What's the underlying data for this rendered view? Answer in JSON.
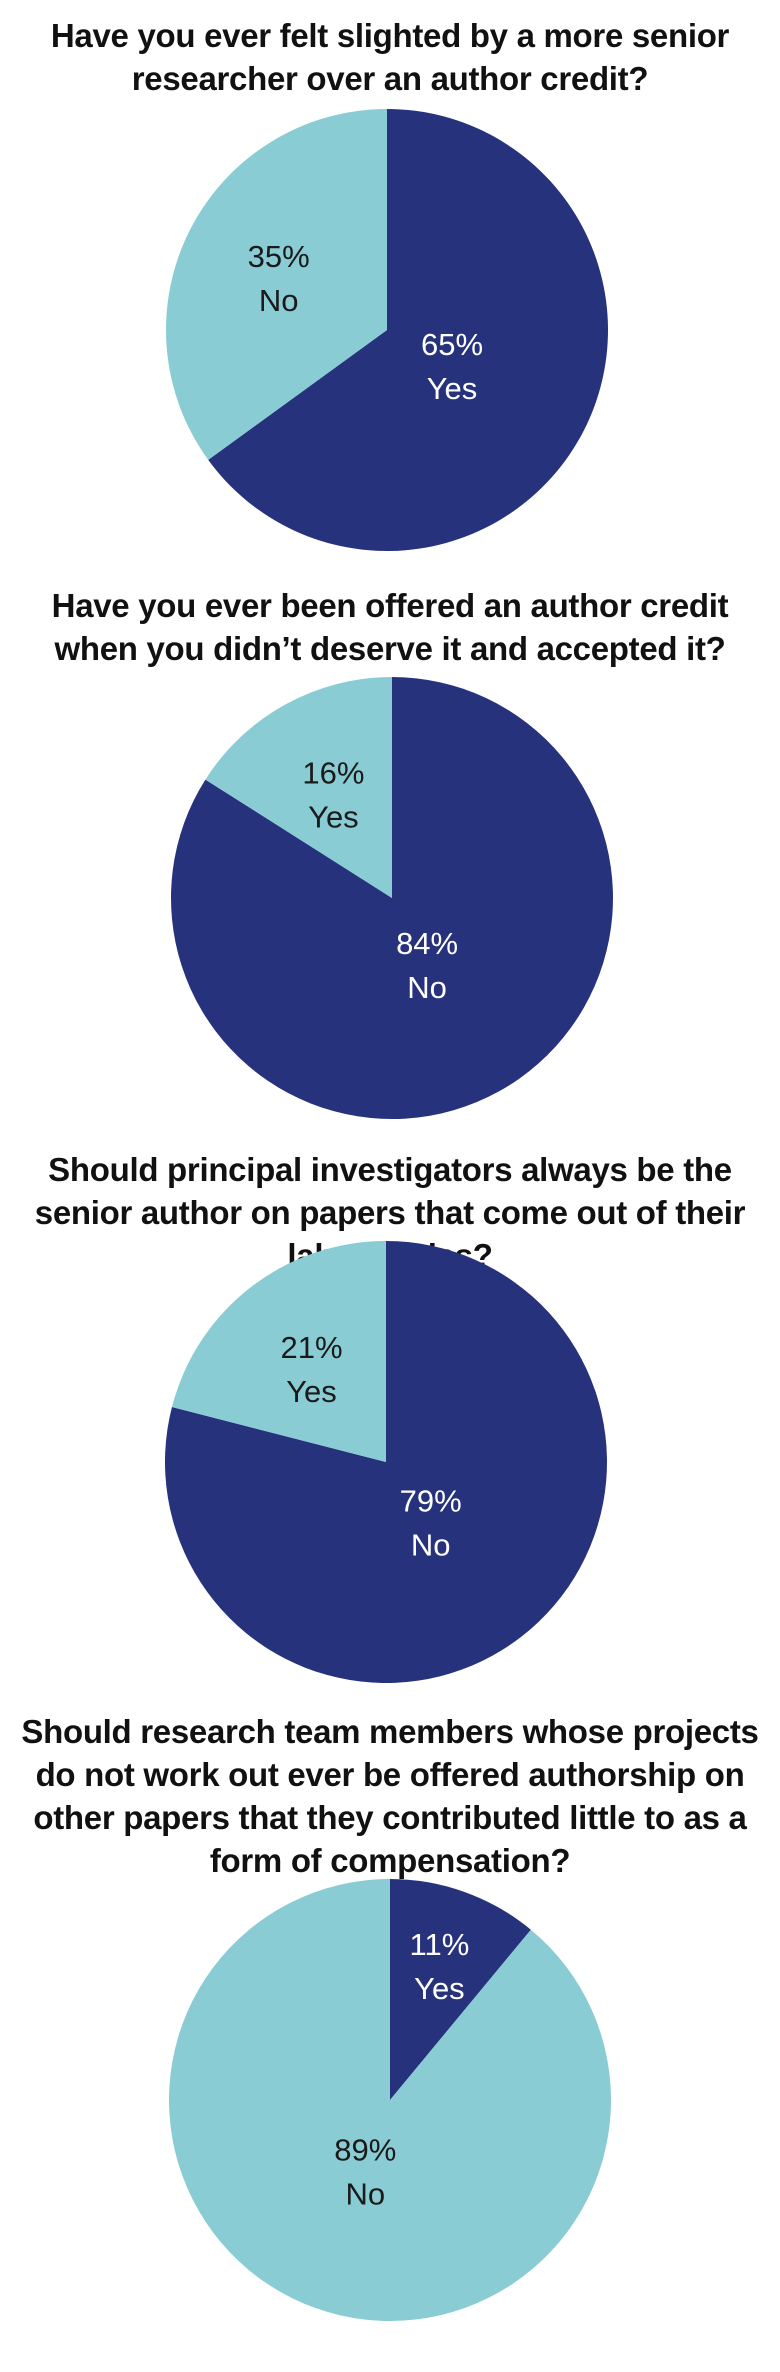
{
  "colors": {
    "dark": "#27327d",
    "light": "#89ccd4",
    "dark_text": "#ffffff",
    "light_text": "#1a1a1a"
  },
  "chart_data": [
    {
      "type": "pie",
      "title": "Have you ever felt slighted by a more senior researcher over an author credit?",
      "start": "clockwise-from-top",
      "slices": [
        {
          "label": "Yes",
          "value": 65,
          "pct_label": "65%",
          "color": "dark"
        },
        {
          "label": "No",
          "value": 35,
          "pct_label": "35%",
          "color": "light"
        }
      ]
    },
    {
      "type": "pie",
      "title": "Have you ever been offered an author credit when you didn’t deserve it and accepted it?",
      "start": "clockwise-from-top",
      "slices": [
        {
          "label": "No",
          "value": 84,
          "pct_label": "84%",
          "color": "dark"
        },
        {
          "label": "Yes",
          "value": 16,
          "pct_label": "16%",
          "color": "light"
        }
      ]
    },
    {
      "type": "pie",
      "title": "Should principal investigators always be the senior author on papers that come out of their laboratories?",
      "start": "clockwise-from-top",
      "slices": [
        {
          "label": "No",
          "value": 79,
          "pct_label": "79%",
          "color": "dark"
        },
        {
          "label": "Yes",
          "value": 21,
          "pct_label": "21%",
          "color": "light"
        }
      ]
    },
    {
      "type": "pie",
      "title": "Should research team members whose projects do not work out ever be offered authorship on other papers that they contributed little to as a form of compensation?",
      "start": "clockwise-from-top",
      "slices": [
        {
          "label": "Yes",
          "value": 11,
          "pct_label": "11%",
          "color": "dark"
        },
        {
          "label": "No",
          "value": 89,
          "pct_label": "89%",
          "color": "light"
        }
      ]
    }
  ]
}
